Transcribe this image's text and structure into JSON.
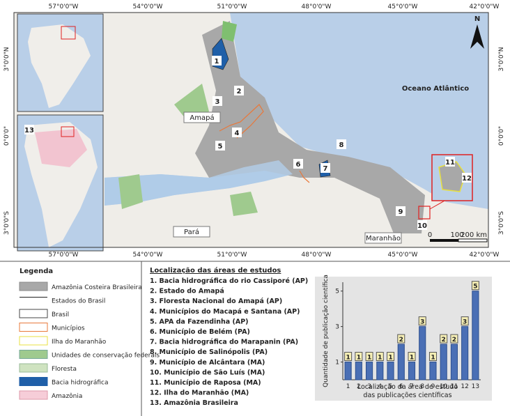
{
  "map": {
    "lon_labels": [
      "57°0'0\"W",
      "54°0'0\"W",
      "51°0'0\"W",
      "48°0'0\"W",
      "45°0'0\"W",
      "42°0'0\"W"
    ],
    "lat_labels": [
      "3°0'0\"N",
      "0°0'0\"",
      "3°0'0\"S"
    ],
    "places": [
      "Amapá",
      "Pará",
      "Maranhão",
      "Oceano Atlântico"
    ],
    "markers": [
      "1",
      "2",
      "3",
      "4",
      "5",
      "6",
      "7",
      "8",
      "9",
      "10",
      "11",
      "12",
      "13"
    ],
    "scale": [
      "0",
      "100",
      "200 km"
    ],
    "north": "N"
  },
  "legend": {
    "title": "Legenda",
    "items": [
      "Amazônia Costeira Brasileira",
      "Estados do Brasil",
      "Brasil",
      "Municípios",
      "Ilha do Maranhão",
      "Unidades de conservação federais",
      "Floresta",
      "Bacia hidrográfica",
      "Amazônia"
    ]
  },
  "study_areas": {
    "title": "Localização das áreas de estudos",
    "items": [
      "1. Bacia hidrográfica do rio Cassiporé (AP)",
      "2. Estado do Amapá",
      "3. Floresta Nacional do Amapá (AP)",
      "4. Municípios do Macapá e Santana (AP)",
      "5. APA da Fazendinha (AP)",
      "6. Município de Belém (PA)",
      "7. Bacia hidrográfica do Marapanin (PA)",
      "8.  Município de Salinópolis (PA)",
      "9. Município de Alcântara (MA)",
      "10. Município de São Luís (MA)",
      "11. Município de Raposa (MA)",
      "12. Ilha do Maranhão (MA)",
      "13. Amazônia Brasileira"
    ]
  },
  "chart_data": {
    "type": "bar",
    "categories": [
      "1",
      "2",
      "3",
      "4",
      "5",
      "6",
      "7",
      "8",
      "9",
      "10",
      "11",
      "12",
      "13"
    ],
    "values": [
      1,
      1,
      1,
      1,
      1,
      2,
      1,
      3,
      1,
      2,
      2,
      3,
      5
    ],
    "color": "#4a6fb5",
    "ylim": [
      0,
      5.5
    ],
    "yticks": [
      1,
      3,
      5
    ],
    "ylabel": "Quantidade de publicação científica",
    "xlabel": [
      "Localização da área de estudo",
      "das publicações científicas"
    ]
  }
}
